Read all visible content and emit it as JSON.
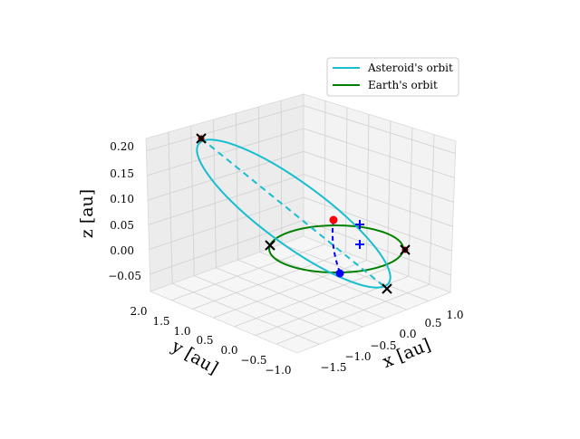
{
  "chart_data": {
    "type": "line",
    "projection": "3d",
    "axes": {
      "x": {
        "label": "x [au]",
        "ticks": [
          "−1.5",
          "−1.0",
          "−0.5",
          "0.0",
          "0.5",
          "1.0"
        ],
        "tick_values": [
          -1.5,
          -1.0,
          -0.5,
          0.0,
          0.5,
          1.0
        ]
      },
      "y": {
        "label": "y [au]",
        "ticks": [
          "2.0",
          "1.5",
          "1.0",
          "0.5",
          "0.0",
          "−0.5",
          "−1.0"
        ],
        "tick_values": [
          2.0,
          1.5,
          1.0,
          0.5,
          0.0,
          -0.5,
          -1.0
        ]
      },
      "z": {
        "label": "z [au]",
        "ticks": [
          "0.20",
          "0.15",
          "0.10",
          "0.05",
          "0.00",
          "−0.05"
        ],
        "tick_values": [
          0.2,
          0.15,
          0.1,
          0.05,
          0.0,
          -0.05
        ]
      }
    },
    "legend": {
      "placement": "top-right",
      "entries": [
        {
          "name": "Asteroid's orbit",
          "color": "#17becf"
        },
        {
          "name": "Earth's orbit",
          "color": "#008000"
        }
      ]
    },
    "series": [
      {
        "name": "Asteroid's orbit",
        "color": "#17becf",
        "shape": "ellipse",
        "apsides_line": "dashed"
      },
      {
        "name": "Earth's orbit",
        "color": "#008000",
        "shape": "circle",
        "radius": 1.0
      }
    ],
    "markers": [
      {
        "kind": "red-dot",
        "color": "#ff0000"
      },
      {
        "kind": "blue-dot",
        "color": "#0000ff"
      },
      {
        "kind": "blue-plus",
        "color": "#0000ff"
      },
      {
        "kind": "blue-plus",
        "color": "#0000ff"
      },
      {
        "kind": "black-x",
        "color": "#000000"
      },
      {
        "kind": "black-x",
        "color": "#000000"
      },
      {
        "kind": "black-x",
        "color": "#000000"
      },
      {
        "kind": "black-x",
        "color": "#000000"
      }
    ],
    "grid": true
  }
}
